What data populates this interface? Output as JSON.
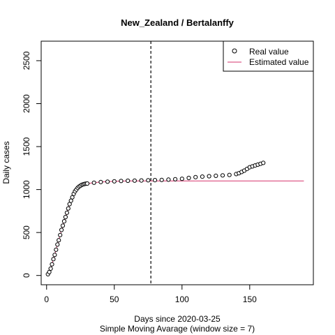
{
  "chart_data": {
    "type": "scatter",
    "title": "New_Zealand / Bertalanffy",
    "xlabel": "Days since 2020-03-25",
    "xlabel2": "Simple Moving Avarage (window size = 7)",
    "ylabel": "Daily cases",
    "xlim": [
      -4,
      197
    ],
    "ylim": [
      -108,
      2727
    ],
    "xticks": [
      0,
      50,
      100,
      150
    ],
    "yticks": [
      0,
      500,
      1000,
      1500,
      2000,
      2500
    ],
    "grid": false,
    "legend_position": "top-right",
    "vline": {
      "x": 77,
      "style": "dashed"
    },
    "series": [
      {
        "name": "Real value",
        "style": "points",
        "color": "#000000",
        "fill": "#ffffff",
        "x": [
          1,
          2,
          3,
          4,
          5,
          6,
          7,
          8,
          9,
          10,
          11,
          12,
          13,
          14,
          15,
          16,
          17,
          18,
          19,
          20,
          21,
          22,
          23,
          24,
          25,
          26,
          27,
          28,
          29,
          30,
          35,
          40,
          45,
          50,
          55,
          60,
          65,
          70,
          75,
          80,
          85,
          90,
          95,
          100,
          105,
          110,
          115,
          120,
          125,
          130,
          135,
          140,
          142,
          144,
          146,
          148,
          150,
          152,
          154,
          156,
          158,
          160
        ],
        "y": [
          15,
          40,
          80,
          130,
          190,
          240,
          300,
          360,
          410,
          470,
          530,
          580,
          630,
          680,
          730,
          780,
          830,
          870,
          910,
          950,
          980,
          1000,
          1020,
          1035,
          1045,
          1055,
          1060,
          1065,
          1068,
          1070,
          1080,
          1088,
          1092,
          1096,
          1100,
          1102,
          1104,
          1106,
          1108,
          1110,
          1112,
          1115,
          1120,
          1125,
          1135,
          1145,
          1150,
          1155,
          1160,
          1165,
          1170,
          1180,
          1190,
          1205,
          1220,
          1240,
          1260,
          1270,
          1280,
          1290,
          1300,
          1310
        ]
      },
      {
        "name": "Estimated value",
        "style": "line",
        "color": "#d6336c",
        "x": [
          1,
          2,
          3,
          4,
          5,
          6,
          7,
          8,
          9,
          10,
          11,
          12,
          13,
          14,
          15,
          16,
          17,
          18,
          19,
          20,
          21,
          22,
          23,
          24,
          25,
          26,
          27,
          28,
          29,
          30,
          35,
          40,
          45,
          50,
          60,
          70,
          80,
          100,
          120,
          140,
          160,
          190
        ],
        "y": [
          15,
          40,
          80,
          130,
          190,
          240,
          300,
          360,
          410,
          470,
          530,
          580,
          630,
          680,
          730,
          780,
          830,
          870,
          910,
          950,
          980,
          1000,
          1020,
          1035,
          1045,
          1055,
          1060,
          1065,
          1068,
          1070,
          1080,
          1088,
          1092,
          1096,
          1100,
          1100,
          1100,
          1100,
          1100,
          1100,
          1100,
          1100
        ]
      }
    ]
  }
}
